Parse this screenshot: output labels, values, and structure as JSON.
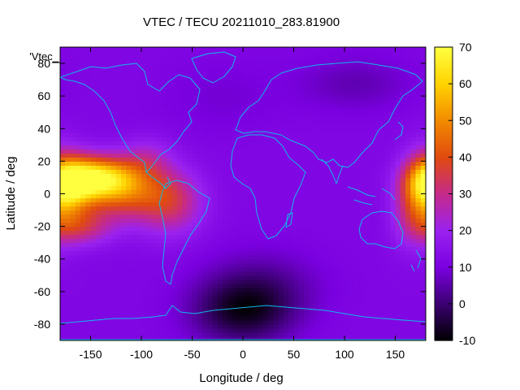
{
  "chart_data": {
    "type": "heatmap",
    "title": "VTEC / TECU 20211010_283.81900",
    "xlabel": "Longitude / deg",
    "ylabel": "Latitude / deg",
    "legend_key": "'Vtec_",
    "xlim": [
      -180,
      180
    ],
    "ylim": [
      -90,
      90
    ],
    "x_ticks": [
      -150,
      -100,
      -50,
      0,
      50,
      100,
      150
    ],
    "y_ticks": [
      -80,
      -60,
      -40,
      -20,
      0,
      20,
      40,
      60,
      80
    ],
    "colorbar": {
      "range": [
        -10,
        70
      ],
      "ticks": [
        -10,
        0,
        10,
        20,
        30,
        40,
        50,
        60,
        70
      ],
      "palette": [
        "#000000",
        "#3a0070",
        "#7a00e0",
        "#9a22f0",
        "#c52a8a",
        "#e04a10",
        "#f28a00",
        "#ffd200",
        "#ffff40"
      ]
    },
    "grid": false,
    "field": {
      "background_vtec": 12,
      "features": [
        {
          "lon": -145,
          "lat": 10,
          "vtec": 58,
          "sigma_lon": 28,
          "sigma_lat": 9
        },
        {
          "lon": -170,
          "lat": 5,
          "vtec": 42,
          "sigma_lon": 18,
          "sigma_lat": 12
        },
        {
          "lon": -115,
          "lat": 0,
          "vtec": 36,
          "sigma_lon": 30,
          "sigma_lat": 12
        },
        {
          "lon": -70,
          "lat": -5,
          "vtec": 30,
          "sigma_lon": 22,
          "sigma_lat": 14
        },
        {
          "lon": -160,
          "lat": -20,
          "vtec": 30,
          "sigma_lon": 22,
          "sigma_lat": 8
        },
        {
          "lon": -95,
          "lat": 22,
          "vtec": 22,
          "sigma_lon": 18,
          "sigma_lat": 9
        },
        {
          "lon": 178,
          "lat": 0,
          "vtec": 34,
          "sigma_lon": 14,
          "sigma_lat": 18
        },
        {
          "lon": 160,
          "lat": -10,
          "vtec": 20,
          "sigma_lon": 12,
          "sigma_lat": 16
        },
        {
          "lon": 0,
          "lat": -72,
          "vtec": -6,
          "sigma_lon": 35,
          "sigma_lat": 14
        },
        {
          "lon": 20,
          "lat": -55,
          "vtec": 5,
          "sigma_lon": 40,
          "sigma_lat": 15
        },
        {
          "lon": 110,
          "lat": 68,
          "vtec": 6,
          "sigma_lon": 40,
          "sigma_lat": 12
        },
        {
          "lon": -20,
          "lat": 60,
          "vtec": 9,
          "sigma_lon": 40,
          "sigma_lat": 15
        }
      ]
    }
  }
}
